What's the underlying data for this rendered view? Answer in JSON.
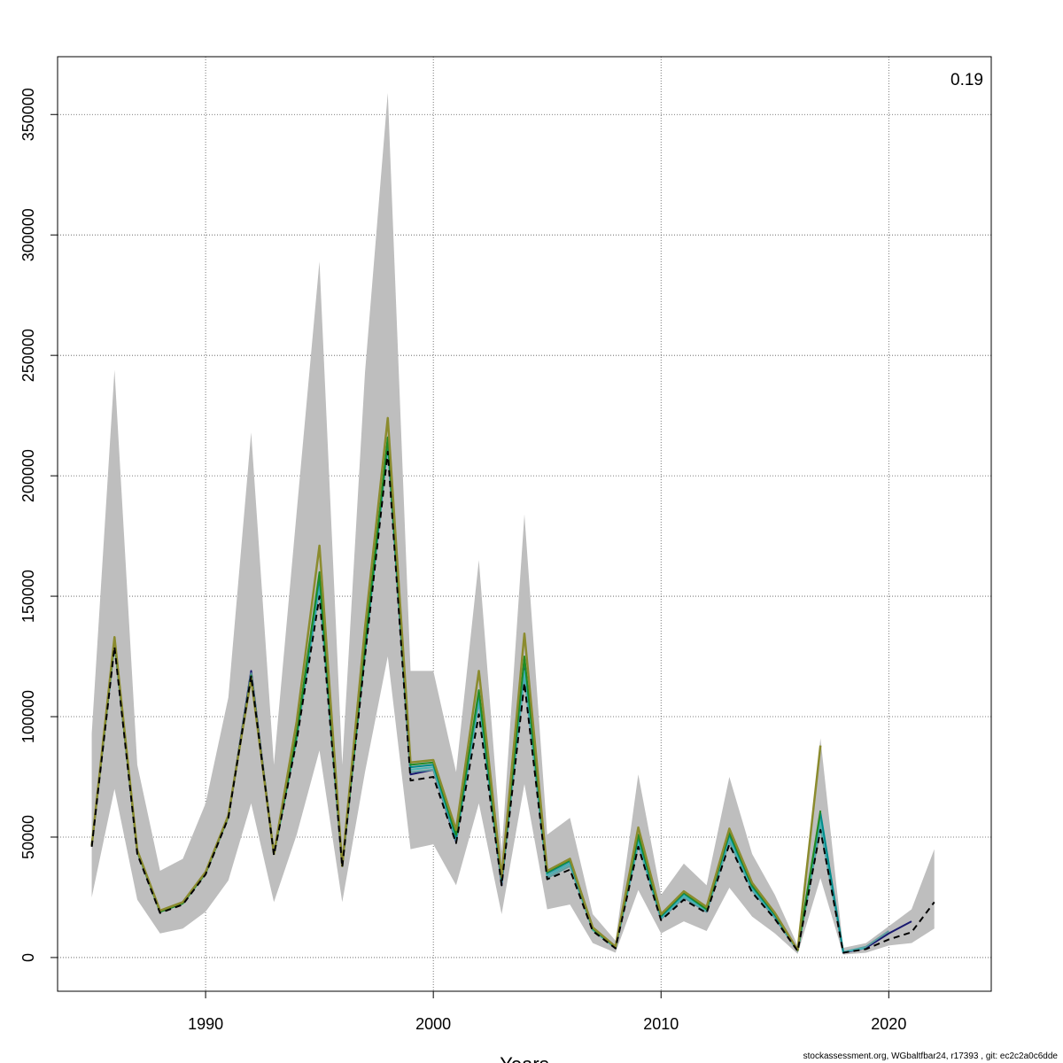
{
  "chart_data": {
    "type": "line",
    "corner_label": "0.19",
    "xlabel": "Years",
    "ylabel": "",
    "xlim": [
      1983.5,
      2024.5
    ],
    "ylim": [
      -14000,
      374000
    ],
    "x_ticks": [
      1990,
      2000,
      2010,
      2020
    ],
    "y_ticks": [
      0,
      50000,
      100000,
      150000,
      200000,
      250000,
      300000,
      350000
    ],
    "grid": true,
    "ci_band": {
      "color": "#bebebe",
      "x": [
        1985,
        1986,
        1987,
        1988,
        1989,
        1990,
        1991,
        1992,
        1993,
        1994,
        1995,
        1996,
        1997,
        1998,
        1999,
        2000,
        2001,
        2002,
        2003,
        2004,
        2005,
        2006,
        2007,
        2008,
        2009,
        2010,
        2011,
        2012,
        2013,
        2014,
        2015,
        2016,
        2017,
        2018,
        2019,
        2020,
        2021,
        2022
      ],
      "upper": [
        93000,
        244000,
        80000,
        36000,
        41000,
        64000,
        108000,
        218000,
        80000,
        185000,
        289000,
        80000,
        243000,
        359000,
        119000,
        119000,
        77000,
        165000,
        44000,
        184000,
        51000,
        58000,
        18000,
        7000,
        76000,
        26000,
        39000,
        30000,
        75000,
        43000,
        26000,
        5000,
        91000,
        4000,
        6000,
        13000,
        20000,
        45000
      ],
      "lower": [
        25000,
        70000,
        24000,
        10000,
        12000,
        19000,
        32000,
        64000,
        23000,
        51000,
        86000,
        23000,
        77000,
        125000,
        45000,
        47000,
        30000,
        64000,
        18000,
        72000,
        20000,
        22000,
        6000,
        2000,
        28000,
        10000,
        15000,
        11000,
        29000,
        17000,
        10000,
        1500,
        33000,
        1200,
        2000,
        5000,
        6000,
        12000
      ]
    },
    "series": [
      {
        "color": "#191970",
        "width": 2,
        "x": [
          1985,
          1986,
          1987,
          1988,
          1989,
          1990,
          1991,
          1992,
          1993,
          1994,
          1995,
          1996,
          1997,
          1998,
          1999,
          2000,
          2001,
          2002,
          2003,
          2004,
          2005,
          2006,
          2007,
          2008,
          2009,
          2010,
          2011,
          2012,
          2013,
          2014,
          2015,
          2016,
          2017,
          2018,
          2019,
          2020,
          2021
        ],
        "values": [
          46500,
          131000,
          44000,
          19000,
          22500,
          35000,
          58500,
          119000,
          43000,
          92000,
          158000,
          38000,
          128000,
          214000,
          76000,
          78000,
          48000,
          110000,
          30000,
          123000,
          34000,
          39000,
          11500,
          4000,
          48000,
          16000,
          25000,
          19000,
          49000,
          28000,
          16500,
          2800,
          57000,
          2000,
          4000,
          10000,
          15000
        ]
      },
      {
        "color": "#5f9ea0",
        "width": 2,
        "x": [
          1985,
          1986,
          1987,
          1988,
          1989,
          1990,
          1991,
          1992,
          1993,
          1994,
          1995,
          1996,
          1997,
          1998,
          1999,
          2000,
          2001,
          2002,
          2003,
          2004,
          2005,
          2006,
          2007,
          2008,
          2009,
          2010,
          2011,
          2012,
          2013,
          2014,
          2015,
          2016,
          2017,
          2018,
          2019,
          2020
        ],
        "values": [
          46500,
          131000,
          44000,
          19000,
          22500,
          35000,
          58500,
          118000,
          43000,
          91000,
          153000,
          38000,
          127000,
          213000,
          77000,
          78000,
          48500,
          106000,
          31000,
          117000,
          33000,
          38000,
          11500,
          4000,
          47000,
          16000,
          25000,
          19000,
          48000,
          28000,
          16500,
          2800,
          54000,
          2300,
          4500,
          11000
        ]
      },
      {
        "color": "#46b4b4",
        "width": 2,
        "x": [
          1985,
          1986,
          1987,
          1988,
          1989,
          1990,
          1991,
          1992,
          1993,
          1994,
          1995,
          1996,
          1997,
          1998,
          1999,
          2000,
          2001,
          2002,
          2003,
          2004,
          2005,
          2006,
          2007,
          2008,
          2009,
          2010,
          2011,
          2012,
          2013,
          2014,
          2015,
          2016,
          2017,
          2018,
          2019
        ],
        "values": [
          46500,
          131000,
          44000,
          19000,
          22500,
          35000,
          58500,
          117000,
          43000,
          91000,
          154000,
          38000,
          127000,
          213000,
          78000,
          79000,
          49000,
          107000,
          31500,
          119000,
          34000,
          39000,
          11500,
          4000,
          48000,
          16500,
          25500,
          19500,
          49500,
          28500,
          17000,
          2900,
          57000,
          2300,
          4000
        ]
      },
      {
        "color": "#008b8b",
        "width": 2,
        "x": [
          1985,
          1986,
          1987,
          1988,
          1989,
          1990,
          1991,
          1992,
          1993,
          1994,
          1995,
          1996,
          1997,
          1998,
          1999,
          2000,
          2001,
          2002,
          2003,
          2004,
          2005,
          2006,
          2007,
          2008,
          2009,
          2010,
          2011,
          2012,
          2013,
          2014,
          2015,
          2016,
          2017,
          2018
        ],
        "values": [
          46500,
          131000,
          44000,
          19000,
          22500,
          35000,
          58500,
          117000,
          43000,
          92000,
          158000,
          38000,
          128000,
          214000,
          79000,
          80000,
          50000,
          110000,
          32000,
          124000,
          35000,
          40000,
          12000,
          4200,
          50000,
          17000,
          26500,
          20000,
          51000,
          29500,
          17500,
          3000,
          60000,
          2400
        ]
      },
      {
        "color": "#228b22",
        "width": 2,
        "x": [
          1985,
          1986,
          1987,
          1988,
          1989,
          1990,
          1991,
          1992,
          1993,
          1994,
          1995,
          1996,
          1997,
          1998,
          1999,
          2000,
          2001,
          2002,
          2003,
          2004,
          2005,
          2006,
          2007,
          2008,
          2009,
          2010,
          2011,
          2012,
          2013,
          2014,
          2015,
          2016,
          2017
        ],
        "values": [
          46500,
          131500,
          44000,
          19000,
          22500,
          35000,
          58500,
          117000,
          43000,
          93000,
          160000,
          38000,
          130000,
          216000,
          80000,
          81000,
          51000,
          111000,
          33000,
          125000,
          35500,
          40500,
          12000,
          4300,
          51000,
          17500,
          27000,
          20000,
          52000,
          30000,
          18000,
          3000,
          61000
        ]
      },
      {
        "color": "#8b8b2e",
        "width": 2.5,
        "x": [
          1985,
          1986,
          1987,
          1988,
          1989,
          1990,
          1991,
          1992,
          1993,
          1994,
          1995,
          1996,
          1997,
          1998,
          1999,
          2000,
          2001,
          2002,
          2003,
          2004,
          2005,
          2006,
          2007,
          2008,
          2009,
          2010,
          2011,
          2012,
          2013,
          2014,
          2015,
          2016,
          2017
        ],
        "values": [
          46500,
          133000,
          44500,
          19500,
          23000,
          35500,
          59000,
          116000,
          43000,
          98000,
          171000,
          38000,
          137000,
          224000,
          81000,
          82000,
          53000,
          119000,
          33500,
          134500,
          36000,
          41000,
          12500,
          4500,
          54000,
          18000,
          27500,
          21000,
          53500,
          31000,
          18500,
          3100,
          88000
        ]
      },
      {
        "color": "#000000",
        "width": 2,
        "dash": "7,5",
        "x": [
          1985,
          1986,
          1987,
          1988,
          1989,
          1990,
          1991,
          1992,
          1993,
          1994,
          1995,
          1996,
          1997,
          1998,
          1999,
          2000,
          2001,
          2002,
          2003,
          2004,
          2005,
          2006,
          2007,
          2008,
          2009,
          2010,
          2011,
          2012,
          2013,
          2014,
          2015,
          2016,
          2017,
          2018,
          2019,
          2020,
          2021,
          2022
        ],
        "values": [
          46000,
          129000,
          43000,
          18500,
          22000,
          34500,
          58000,
          117000,
          42500,
          90000,
          150000,
          37500,
          125000,
          210000,
          73500,
          75000,
          47500,
          101000,
          30000,
          114000,
          32500,
          36500,
          11000,
          3800,
          46000,
          15500,
          24000,
          18500,
          47000,
          27000,
          16000,
          2700,
          53000,
          2000,
          3500,
          7500,
          10500,
          23000
        ]
      }
    ],
    "footer": "stockassessment.org, WGbaltfbar24, r17393 , git: ec2c2a0c6dde"
  }
}
